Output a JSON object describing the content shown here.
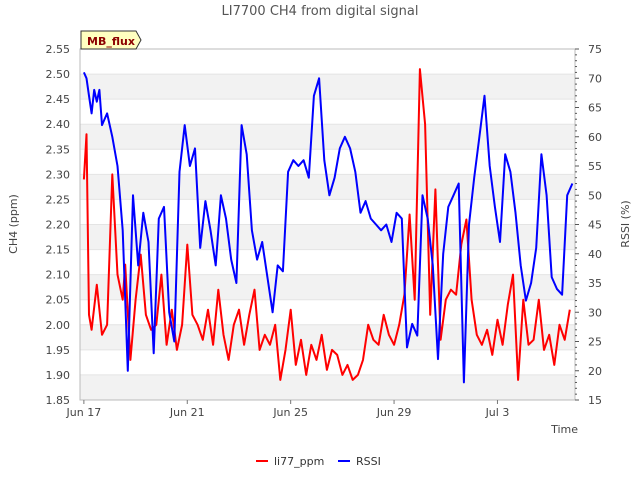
{
  "chart_data": {
    "type": "line",
    "title": "LI7700 CH4 from digital signal",
    "xlabel": "Time",
    "ylabel": "CH4 (ppm)",
    "ylabel_right": "RSSI (%)",
    "badge": "MB_flux",
    "x_ticks": [
      "Jun 17",
      "Jun 21",
      "Jun 25",
      "Jun 29",
      "Jul 3"
    ],
    "ylim": [
      1.85,
      2.55
    ],
    "y_ticks": [
      "1.85",
      "1.90",
      "1.95",
      "2.00",
      "2.05",
      "2.10",
      "2.15",
      "2.20",
      "2.25",
      "2.30",
      "2.35",
      "2.40",
      "2.45",
      "2.50",
      "2.55"
    ],
    "ylim_right": [
      15,
      75
    ],
    "y_ticks_right": [
      "15",
      "20",
      "25",
      "30",
      "35",
      "40",
      "45",
      "50",
      "55",
      "60",
      "65",
      "70",
      "75"
    ],
    "grid": "horizontal bands",
    "legend_position": "bottom",
    "x_unit": "days since Jun 17",
    "series": [
      {
        "name": "li77_ppm",
        "color": "#ff0000",
        "axis": "left",
        "x": [
          0,
          0.1,
          0.2,
          0.3,
          0.5,
          0.7,
          0.9,
          1.1,
          1.3,
          1.5,
          1.6,
          1.8,
          2.0,
          2.2,
          2.4,
          2.6,
          2.8,
          3.0,
          3.2,
          3.4,
          3.6,
          3.8,
          4.0,
          4.2,
          4.4,
          4.6,
          4.8,
          5.0,
          5.2,
          5.4,
          5.6,
          5.8,
          6.0,
          6.2,
          6.4,
          6.6,
          6.8,
          7.0,
          7.2,
          7.4,
          7.6,
          7.8,
          8.0,
          8.2,
          8.4,
          8.6,
          8.8,
          9.0,
          9.2,
          9.4,
          9.6,
          9.8,
          10.0,
          10.2,
          10.4,
          10.6,
          10.8,
          11.0,
          11.2,
          11.4,
          11.6,
          11.8,
          12.0,
          12.2,
          12.4,
          12.6,
          12.8,
          13.0,
          13.2,
          13.4,
          13.6,
          13.8,
          14.0,
          14.2,
          14.4,
          14.6,
          14.8,
          15.0,
          15.2,
          15.4,
          15.6,
          15.8,
          16.0,
          16.2,
          16.4,
          16.6,
          16.8,
          17.0,
          17.2,
          17.4,
          17.6,
          17.8,
          18.0,
          18.2,
          18.4,
          18.6,
          18.8
        ],
        "values": [
          2.29,
          2.38,
          2.02,
          1.99,
          2.08,
          1.98,
          2.0,
          2.3,
          2.1,
          2.05,
          2.12,
          1.93,
          2.05,
          2.14,
          2.02,
          1.99,
          2.0,
          2.1,
          1.96,
          2.03,
          1.95,
          2.0,
          2.16,
          2.02,
          2.0,
          1.97,
          2.03,
          1.96,
          2.07,
          1.98,
          1.93,
          2.0,
          2.03,
          1.96,
          2.02,
          2.07,
          1.95,
          1.98,
          1.96,
          2.0,
          1.89,
          1.95,
          2.03,
          1.92,
          1.97,
          1.9,
          1.96,
          1.93,
          1.98,
          1.91,
          1.95,
          1.94,
          1.9,
          1.92,
          1.89,
          1.9,
          1.93,
          2.0,
          1.97,
          1.96,
          2.02,
          1.98,
          1.96,
          2.0,
          2.06,
          2.22,
          2.05,
          2.51,
          2.4,
          2.02,
          2.27,
          1.97,
          2.05,
          2.07,
          2.06,
          2.16,
          2.21,
          2.05,
          1.98,
          1.96,
          1.99,
          1.94,
          2.01,
          1.96,
          2.04,
          2.1,
          1.89,
          2.05,
          1.96,
          1.97,
          2.05,
          1.95,
          1.98,
          1.92,
          2.0,
          1.97,
          2.03
        ]
      },
      {
        "name": "RSSI",
        "color": "#0000ff",
        "axis": "right",
        "x": [
          0,
          0.1,
          0.2,
          0.3,
          0.4,
          0.5,
          0.6,
          0.7,
          0.9,
          1.1,
          1.3,
          1.5,
          1.7,
          1.9,
          2.1,
          2.3,
          2.5,
          2.7,
          2.9,
          3.1,
          3.3,
          3.5,
          3.7,
          3.9,
          4.1,
          4.3,
          4.5,
          4.7,
          4.9,
          5.1,
          5.3,
          5.5,
          5.7,
          5.9,
          6.1,
          6.3,
          6.5,
          6.7,
          6.9,
          7.1,
          7.3,
          7.5,
          7.7,
          7.9,
          8.1,
          8.3,
          8.5,
          8.7,
          8.9,
          9.1,
          9.3,
          9.5,
          9.7,
          9.9,
          10.1,
          10.3,
          10.5,
          10.7,
          10.9,
          11.1,
          11.3,
          11.5,
          11.7,
          11.9,
          12.1,
          12.3,
          12.5,
          12.7,
          12.9,
          13.1,
          13.3,
          13.5,
          13.7,
          13.9,
          14.1,
          14.3,
          14.5,
          14.7,
          14.9,
          15.1,
          15.3,
          15.5,
          15.7,
          15.9,
          16.1,
          16.3,
          16.5,
          16.7,
          16.9,
          17.1,
          17.3,
          17.5,
          17.7,
          17.9,
          18.1,
          18.3,
          18.5,
          18.7,
          18.9
        ],
        "values": [
          71,
          70,
          67,
          64,
          68,
          66,
          68,
          62,
          64,
          60,
          55,
          44,
          20,
          50,
          38,
          47,
          42,
          23,
          46,
          48,
          30,
          25,
          54,
          62,
          55,
          58,
          41,
          49,
          44,
          38,
          50,
          46,
          39,
          35,
          62,
          57,
          44,
          39,
          42,
          36,
          30,
          38,
          37,
          54,
          56,
          55,
          56,
          53,
          67,
          70,
          56,
          50,
          53,
          58,
          60,
          58,
          54,
          47,
          49,
          46,
          45,
          44,
          45,
          42,
          47,
          46,
          24,
          28,
          26,
          50,
          46,
          38,
          22,
          40,
          48,
          50,
          52,
          18,
          45,
          53,
          60,
          67,
          55,
          48,
          42,
          57,
          54,
          47,
          38,
          32,
          35,
          41,
          57,
          50,
          36,
          34,
          33,
          50,
          52
        ]
      }
    ]
  }
}
